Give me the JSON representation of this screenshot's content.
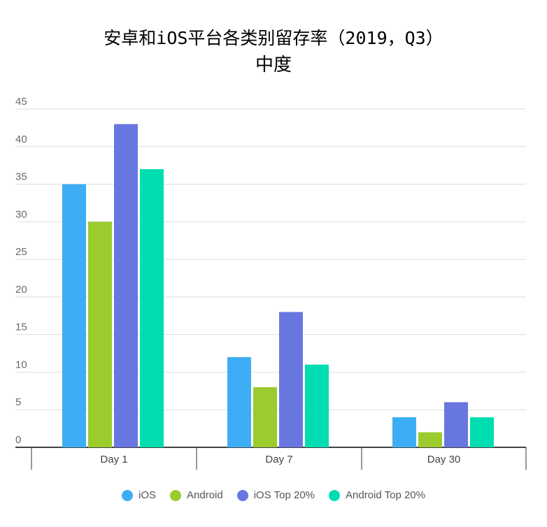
{
  "chart_data": {
    "type": "bar",
    "title": "安卓和iOS平台各类别留存率（2019，Q3）",
    "subtitle": "中度",
    "categories": [
      "Day 1",
      "Day 7",
      "Day 30"
    ],
    "series": [
      {
        "name": "iOS",
        "color": "#3daef5",
        "values": [
          35,
          12,
          4
        ]
      },
      {
        "name": "Android",
        "color": "#9ccb2e",
        "values": [
          30,
          8,
          2
        ]
      },
      {
        "name": "iOS Top 20%",
        "color": "#6877e0",
        "values": [
          43,
          18,
          6
        ]
      },
      {
        "name": "Android Top 20%",
        "color": "#00ddb0",
        "values": [
          37,
          11,
          4
        ]
      }
    ],
    "ylim": [
      0,
      45
    ],
    "yticks": [
      0,
      5,
      10,
      15,
      20,
      25,
      30,
      35,
      40,
      45
    ],
    "grid": true,
    "legend": "bottom"
  }
}
